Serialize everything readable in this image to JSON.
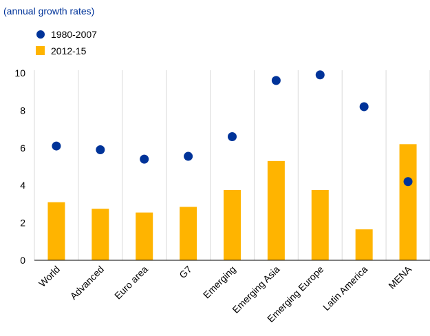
{
  "chart_data": {
    "type": "bar",
    "subtitle": "(annual growth rates)",
    "categories": [
      "World",
      "Advanced",
      "Euro area",
      "G7",
      "Emerging",
      "Emerging Asia",
      "Emerging Europe",
      "Latin America",
      "MENA"
    ],
    "series": [
      {
        "name": "1980-2007",
        "mark": "point",
        "color": "#003399",
        "values": [
          6.1,
          5.9,
          5.4,
          5.55,
          6.6,
          9.6,
          9.9,
          8.2,
          4.2
        ]
      },
      {
        "name": "2012-15",
        "mark": "bar",
        "color": "#FFB400",
        "values": [
          3.1,
          2.75,
          2.55,
          2.85,
          3.75,
          5.3,
          3.75,
          1.65,
          6.2
        ]
      }
    ],
    "yticks": [
      "0",
      "2",
      "4",
      "6",
      "8",
      "10"
    ],
    "ylim": [
      0,
      10
    ],
    "grid": "vertical category separators",
    "legend_position": "top-left",
    "colors": {
      "subtitle": "#003399",
      "axis": "#000000",
      "grid": "#d9d9d9"
    }
  }
}
